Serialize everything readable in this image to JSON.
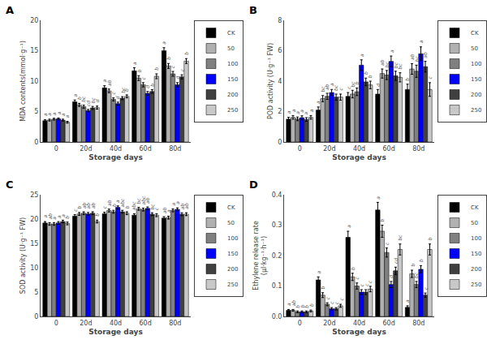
{
  "chart_data": [
    {
      "type": "bar",
      "title": "A",
      "xlabel": "Storage days",
      "ylabel": "MDA contents(mmol·g⁻¹)",
      "categories": [
        "0",
        "20d",
        "40d",
        "60d",
        "80d"
      ],
      "series": [
        {
          "name": "CK",
          "color": "#000000",
          "values": [
            3.5,
            6.6,
            8.9,
            11.7,
            15.0
          ],
          "errors": [
            0.15,
            0.3,
            0.35,
            0.5,
            0.5
          ],
          "annotations": [
            "a",
            "a",
            "a",
            "a",
            "a"
          ]
        },
        {
          "name": "50",
          "color": "#b0b0b0",
          "values": [
            3.6,
            6.1,
            8.4,
            10.5,
            12.5
          ],
          "errors": [
            0.15,
            0.25,
            0.3,
            0.4,
            0.4
          ],
          "annotations": [
            "a",
            "b",
            "ab",
            "b",
            "b"
          ]
        },
        {
          "name": "100",
          "color": "#808080",
          "values": [
            3.75,
            5.8,
            7.0,
            9.4,
            11.2
          ],
          "errors": [
            0.15,
            0.25,
            0.25,
            0.35,
            0.4
          ],
          "annotations": [
            "a",
            "bc",
            "c",
            "c",
            "c"
          ]
        },
        {
          "name": "150",
          "color": "#0000ff",
          "values": [
            3.8,
            5.15,
            6.3,
            8.0,
            9.4
          ],
          "errors": [
            0.15,
            0.2,
            0.25,
            0.3,
            0.35
          ],
          "annotations": [
            "a",
            "cd",
            "d",
            "d",
            "d"
          ]
        },
        {
          "name": "200",
          "color": "#404040",
          "values": [
            3.6,
            5.6,
            7.2,
            8.3,
            10.7
          ],
          "errors": [
            0.15,
            0.25,
            0.25,
            0.3,
            0.35
          ],
          "annotations": [
            "a",
            "bc",
            "bc",
            "b",
            "c"
          ]
        },
        {
          "name": "250",
          "color": "#c8c8c8",
          "values": [
            3.25,
            5.65,
            7.5,
            10.8,
            13.3
          ],
          "errors": [
            0.15,
            0.25,
            0.25,
            0.4,
            0.4
          ],
          "annotations": [
            "a",
            "d",
            "b",
            "b",
            "b"
          ]
        }
      ],
      "ylim": [
        0,
        20
      ],
      "yticks": [
        0,
        5,
        10,
        15,
        20
      ],
      "grid": false,
      "legend": "right"
    },
    {
      "type": "bar",
      "title": "B",
      "xlabel": "Storage days",
      "ylabel": "POD activity (U·g⁻¹ FW)",
      "categories": [
        "0",
        "20d",
        "40d",
        "60d",
        "80d"
      ],
      "series": [
        {
          "name": "CK",
          "color": "#000000",
          "values": [
            1.5,
            2.1,
            3.0,
            3.15,
            3.45
          ],
          "errors": [
            0.12,
            0.2,
            0.25,
            0.3,
            0.35
          ],
          "annotations": [
            "a",
            "a",
            "c",
            "d",
            "b"
          ]
        },
        {
          "name": "50",
          "color": "#b0b0b0",
          "values": [
            1.62,
            2.85,
            3.15,
            4.5,
            4.8
          ],
          "errors": [
            0.12,
            0.2,
            0.25,
            0.3,
            0.35
          ],
          "annotations": [
            "a",
            "bc",
            "bc",
            "ab",
            "ab"
          ]
        },
        {
          "name": "100",
          "color": "#808080",
          "values": [
            1.52,
            3.0,
            3.3,
            4.4,
            4.65
          ],
          "errors": [
            0.12,
            0.2,
            0.25,
            0.3,
            0.4
          ],
          "annotations": [
            "a",
            "ab",
            "b",
            "bc",
            "bc"
          ]
        },
        {
          "name": "150",
          "color": "#0000ff",
          "values": [
            1.6,
            3.25,
            5.05,
            5.3,
            5.8
          ],
          "errors": [
            0.12,
            0.2,
            0.35,
            0.35,
            0.45
          ],
          "annotations": [
            "a",
            "a",
            "a",
            "a",
            "a"
          ]
        },
        {
          "name": "200",
          "color": "#404040",
          "values": [
            1.48,
            2.95,
            3.95,
            4.35,
            4.95
          ],
          "errors": [
            0.12,
            0.2,
            0.25,
            0.3,
            0.35
          ],
          "annotations": [
            "a",
            "bc",
            "b",
            "bc",
            "ab"
          ]
        },
        {
          "name": "250",
          "color": "#c8c8c8",
          "values": [
            1.62,
            2.95,
            3.75,
            4.25,
            3.45
          ],
          "errors": [
            0.12,
            0.2,
            0.25,
            0.3,
            0.45
          ],
          "annotations": [
            "a",
            "c",
            "b",
            "bc",
            "c"
          ]
        }
      ],
      "ylim": [
        0,
        8
      ],
      "yticks": [
        0,
        2,
        4,
        6,
        8
      ],
      "grid": false,
      "legend": "right"
    },
    {
      "type": "bar",
      "title": "C",
      "xlabel": "Storage days",
      "ylabel": "SOD activity (U·g⁻¹ FW)",
      "categories": [
        "0",
        "20d",
        "40d",
        "60d",
        "80d"
      ],
      "series": [
        {
          "name": "CK",
          "color": "#000000",
          "values": [
            19.2,
            20.6,
            21.1,
            20.8,
            20.2
          ],
          "errors": [
            0.28,
            0.3,
            0.3,
            0.3,
            0.3
          ],
          "annotations": [
            "a",
            "c",
            "c",
            "abc",
            "ab"
          ]
        },
        {
          "name": "50",
          "color": "#b0b0b0",
          "values": [
            19.0,
            21.05,
            21.75,
            22.1,
            20.3
          ],
          "errors": [
            0.28,
            0.3,
            0.3,
            0.3,
            0.3
          ],
          "annotations": [
            "ab",
            "b",
            "ab",
            "bc",
            "a"
          ]
        },
        {
          "name": "100",
          "color": "#808080",
          "values": [
            19.0,
            21.2,
            21.5,
            21.95,
            21.8
          ],
          "errors": [
            0.28,
            0.3,
            0.3,
            0.3,
            0.3
          ],
          "annotations": [
            "a",
            "ab",
            "b",
            "abc",
            "a"
          ]
        },
        {
          "name": "150",
          "color": "#0000ff",
          "values": [
            19.2,
            21.05,
            22.4,
            22.2,
            22.0
          ],
          "errors": [
            0.28,
            0.3,
            0.3,
            0.3,
            0.3
          ],
          "annotations": [
            "a",
            "ab",
            "a",
            "ab",
            "a"
          ]
        },
        {
          "name": "200",
          "color": "#404040",
          "values": [
            19.5,
            21.2,
            21.5,
            21.0,
            21.0
          ],
          "errors": [
            0.28,
            0.3,
            0.3,
            0.3,
            0.3
          ],
          "annotations": [
            "a",
            "ab",
            "abc",
            "bc",
            "ab"
          ]
        },
        {
          "name": "250",
          "color": "#c8c8c8",
          "values": [
            19.1,
            19.5,
            21.2,
            20.8,
            21.0
          ],
          "errors": [
            0.28,
            0.3,
            0.3,
            0.3,
            0.3
          ],
          "annotations": [
            "b",
            "b",
            "b",
            "c",
            "ab"
          ]
        }
      ],
      "ylim": [
        0,
        25
      ],
      "yticks": [
        0,
        5,
        10,
        15,
        20,
        25
      ],
      "grid": false,
      "legend": "right"
    },
    {
      "type": "bar",
      "title": "D",
      "xlabel": "Storage days",
      "ylabel": "Ethylene release rate\n(μl·kg⁻¹·h⁻¹)",
      "categories": [
        "0",
        "20d",
        "40d",
        "60d",
        "80d"
      ],
      "series": [
        {
          "name": "CK",
          "color": "#000000",
          "values": [
            0.02,
            0.12,
            0.26,
            0.35,
            0.03
          ],
          "errors": [
            0.003,
            0.01,
            0.02,
            0.025,
            0.005
          ],
          "annotations": [
            "a",
            "a",
            "a",
            "a",
            "a"
          ]
        },
        {
          "name": "50",
          "color": "#b0b0b0",
          "values": [
            0.02,
            0.07,
            0.13,
            0.28,
            0.14
          ],
          "errors": [
            0.003,
            0.008,
            0.012,
            0.02,
            0.012
          ],
          "annotations": [
            "ab",
            "b",
            "b",
            "b",
            "b"
          ]
        },
        {
          "name": "100",
          "color": "#808080",
          "values": [
            0.015,
            0.04,
            0.1,
            0.21,
            0.105
          ],
          "errors": [
            0.003,
            0.005,
            0.01,
            0.015,
            0.01
          ],
          "annotations": [
            "b",
            "c",
            "c",
            "c",
            "bc"
          ]
        },
        {
          "name": "150",
          "color": "#0000ff",
          "values": [
            0.015,
            0.025,
            0.08,
            0.105,
            0.155
          ],
          "errors": [
            0.003,
            0.004,
            0.008,
            0.01,
            0.012
          ],
          "annotations": [
            "b",
            "c",
            "c",
            "d",
            "b"
          ]
        },
        {
          "name": "200",
          "color": "#404040",
          "values": [
            0.015,
            0.025,
            0.08,
            0.15,
            0.07
          ],
          "errors": [
            0.003,
            0.004,
            0.008,
            0.012,
            0.007
          ],
          "annotations": [
            "b",
            "c",
            "c",
            "cd",
            "c"
          ]
        },
        {
          "name": "250",
          "color": "#c8c8c8",
          "values": [
            0.018,
            0.035,
            0.09,
            0.22,
            0.22
          ],
          "errors": [
            0.003,
            0.005,
            0.009,
            0.018,
            0.018
          ],
          "annotations": [
            "b",
            "c",
            "c",
            "bc",
            "b"
          ]
        }
      ],
      "ylim": [
        0,
        0.4
      ],
      "yticks": [
        {
          "value": 0,
          "label": "0.0"
        },
        0.1,
        0.2,
        0.3,
        0.4
      ],
      "grid": false,
      "legend": "right"
    }
  ]
}
